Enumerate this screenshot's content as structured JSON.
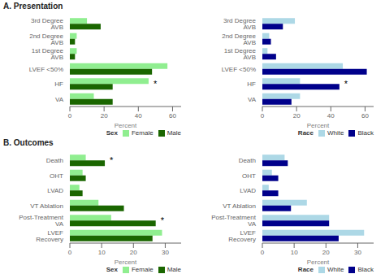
{
  "chart_data": [
    {
      "type": "bar",
      "orientation": "horizontal",
      "title": "A. Presentation",
      "xlabel": "Percent",
      "categories": [
        "3rd Degree AVB",
        "2nd Degree AVB",
        "1st Degree AVB",
        "LVEF <50%",
        "HF",
        "VA"
      ],
      "series": [
        {
          "name": "Female",
          "color": "#90EE90",
          "values": [
            10,
            4,
            4,
            57,
            46,
            14
          ]
        },
        {
          "name": "Male",
          "color": "#1a6600",
          "values": [
            18,
            3,
            3,
            48,
            25,
            25
          ]
        }
      ],
      "xlim": [
        0,
        65
      ],
      "xticks": [
        0,
        20,
        40,
        60
      ],
      "legend": "lower right",
      "legend_title": "Sex",
      "annotations": [
        {
          "category": "HF",
          "text": "*"
        }
      ]
    },
    {
      "type": "bar",
      "orientation": "horizontal",
      "xlabel": "Percent",
      "categories": [
        "3rd Degree AVB",
        "2nd Degree AVB",
        "1st Degree AVB",
        "LVEF <50%",
        "HF",
        "VA"
      ],
      "series": [
        {
          "name": "White",
          "color": "#ADD8E6",
          "values": [
            19,
            4,
            3,
            47,
            22,
            22
          ]
        },
        {
          "name": "Black",
          "color": "#00008B",
          "values": [
            12,
            5,
            8,
            61,
            45,
            17
          ]
        }
      ],
      "xlim": [
        0,
        65
      ],
      "xticks": [
        0,
        20,
        40,
        60
      ],
      "legend": "lower right",
      "legend_title": "Race",
      "annotations": [
        {
          "category": "HF",
          "text": "*"
        }
      ]
    },
    {
      "type": "bar",
      "orientation": "horizontal",
      "title": "B. Outcomes",
      "xlabel": "Percent",
      "categories": [
        "Death",
        "OHT",
        "LVAD",
        "VT Ablation",
        "Post-Treatment VA",
        "LVEF Recovery"
      ],
      "series": [
        {
          "name": "Female",
          "color": "#90EE90",
          "values": [
            5,
            4,
            3,
            9,
            13,
            29
          ]
        },
        {
          "name": "Male",
          "color": "#1a6600",
          "values": [
            11,
            5,
            4,
            17,
            27,
            26
          ]
        }
      ],
      "xlim": [
        0,
        35
      ],
      "xticks": [
        0,
        10,
        20,
        30
      ],
      "legend": "lower right",
      "legend_title": "Sex",
      "annotations": [
        {
          "category": "Death",
          "text": "*"
        },
        {
          "category": "Post-Treatment VA",
          "text": "*"
        }
      ]
    },
    {
      "type": "bar",
      "orientation": "horizontal",
      "xlabel": "Percent",
      "categories": [
        "Death",
        "OHT",
        "LVAD",
        "VT Ablation",
        "Post-Treatment VA",
        "LVEF Recovery"
      ],
      "series": [
        {
          "name": "White",
          "color": "#ADD8E6",
          "values": [
            7,
            3,
            2,
            14,
            21,
            32
          ]
        },
        {
          "name": "Black",
          "color": "#00008B",
          "values": [
            8,
            5,
            5,
            9,
            21,
            24
          ]
        }
      ],
      "xlim": [
        0,
        35
      ],
      "xticks": [
        0,
        10,
        20,
        30
      ],
      "legend": "lower right",
      "legend_title": "Race",
      "annotations": []
    }
  ]
}
